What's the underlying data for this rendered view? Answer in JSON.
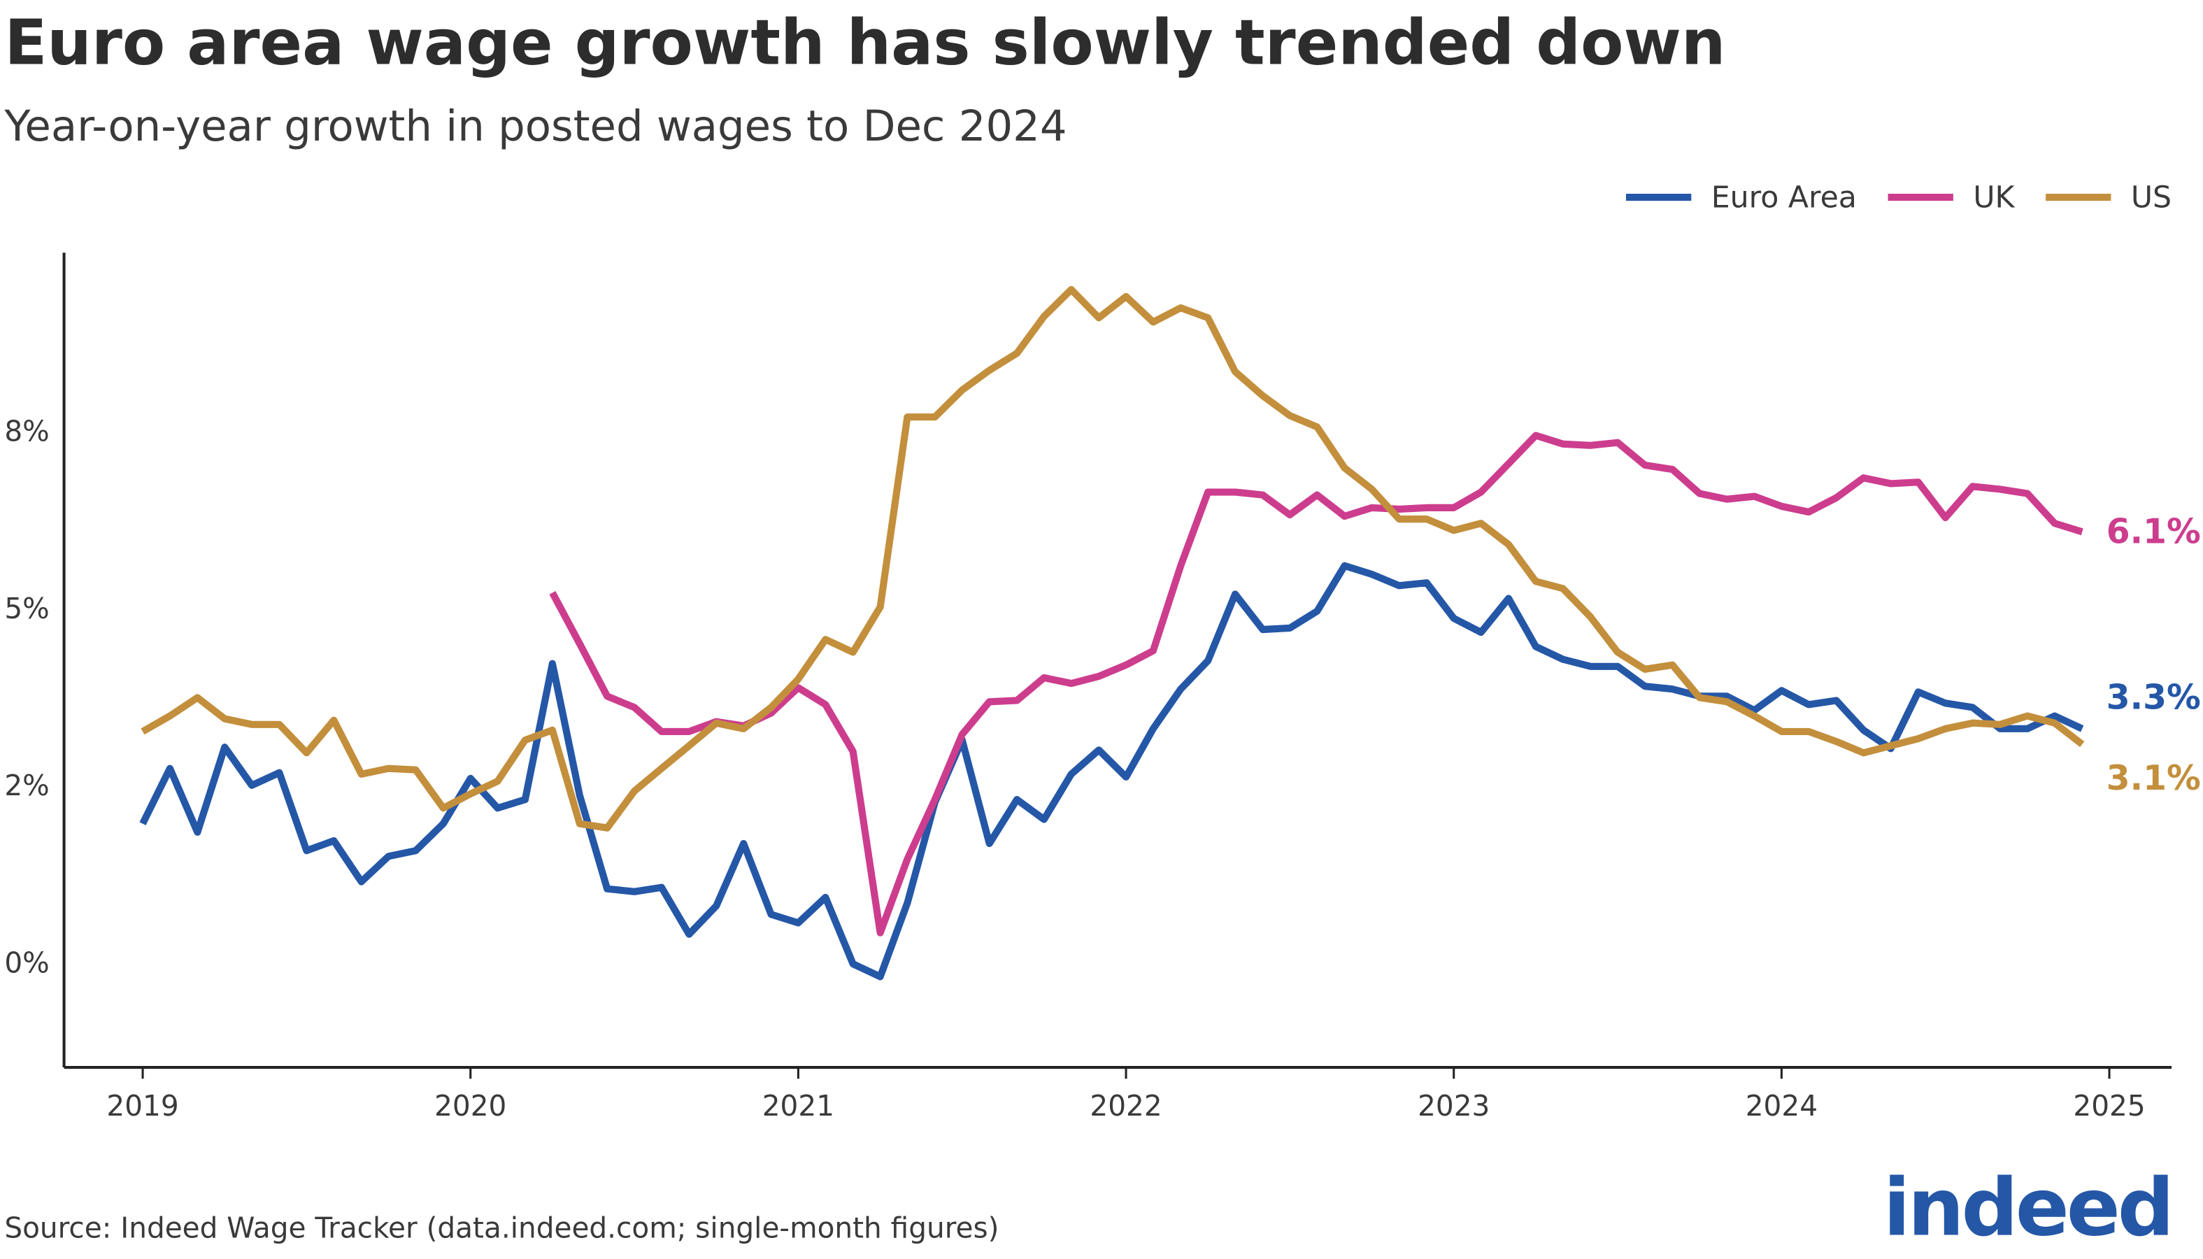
{
  "chart_data": {
    "type": "line",
    "title": "Euro area wage growth has slowly trended down",
    "subtitle": "Year-on-year growth in posted wages to Dec 2024",
    "source": "Source: Indeed Wage Tracker (data.indeed.com; single-month figures)",
    "logo": "indeed",
    "legend": "top-right",
    "xlim": [
      2018.76,
      2025.19
    ],
    "xticks": [
      2019,
      2020,
      2021,
      2022,
      2023,
      2024,
      2025
    ],
    "ylim": [
      -1.5,
      10
    ],
    "yticks": [
      0,
      {
        "value": 2.5,
        "label": "2%"
      },
      {
        "value": 5,
        "label": "5%"
      },
      {
        "value": 7.5,
        "label": "8%"
      }
    ],
    "ytick_zero_label": "0%",
    "x": [
      2019,
      2019.083,
      2019.167,
      2019.25,
      2019.333,
      2019.417,
      2019.5,
      2019.583,
      2019.667,
      2019.75,
      2019.833,
      2019.917,
      2020,
      2020.083,
      2020.167,
      2020.25,
      2020.333,
      2020.417,
      2020.5,
      2020.583,
      2020.667,
      2020.75,
      2020.833,
      2020.917,
      2021,
      2021.083,
      2021.167,
      2021.25,
      2021.333,
      2021.417,
      2021.5,
      2021.583,
      2021.667,
      2021.75,
      2021.833,
      2021.917,
      2022,
      2022.083,
      2022.167,
      2022.25,
      2022.333,
      2022.417,
      2022.5,
      2022.583,
      2022.667,
      2022.75,
      2022.833,
      2022.917,
      2023,
      2023.083,
      2023.167,
      2023.25,
      2023.333,
      2023.417,
      2023.5,
      2023.583,
      2023.667,
      2023.75,
      2023.833,
      2023.917,
      2024,
      2024.083,
      2024.167,
      2024.25,
      2024.333,
      2024.417,
      2024.5,
      2024.583,
      2024.667,
      2024.75,
      2024.833,
      2024.917
    ],
    "series": [
      {
        "name": "Euro Area",
        "color": "#2557a7",
        "end_label": "3.3%",
        "values": [
          1.94,
          2.72,
          1.82,
          3.02,
          2.48,
          2.66,
          1.56,
          1.7,
          1.12,
          1.48,
          1.56,
          1.94,
          2.58,
          2.16,
          2.28,
          4.2,
          2.34,
          1.02,
          0.98,
          1.04,
          0.38,
          0.78,
          1.66,
          0.66,
          0.54,
          0.9,
          -0.04,
          -0.22,
          0.82,
          2.24,
          3.12,
          1.66,
          2.28,
          2.0,
          2.64,
          2.98,
          2.6,
          3.28,
          3.84,
          4.24,
          5.18,
          4.68,
          4.7,
          4.94,
          5.58,
          5.46,
          5.3,
          5.34,
          4.84,
          4.64,
          5.12,
          4.44,
          4.26,
          4.16,
          4.16,
          3.88,
          3.84,
          3.74,
          3.74,
          3.54,
          3.82,
          3.62,
          3.68,
          3.26,
          3.0,
          3.8,
          3.64,
          3.58,
          3.28,
          3.28,
          3.46,
          3.28
        ]
      },
      {
        "name": "UK",
        "color": "#cd3d8e",
        "end_label": "6.1%",
        "values": [
          null,
          null,
          null,
          null,
          null,
          null,
          null,
          null,
          null,
          null,
          null,
          null,
          null,
          null,
          null,
          5.2,
          4.48,
          3.74,
          3.58,
          3.24,
          3.24,
          3.38,
          3.32,
          3.5,
          3.86,
          3.62,
          2.96,
          0.4,
          1.44,
          2.28,
          3.2,
          3.66,
          3.68,
          4.0,
          3.92,
          4.02,
          4.18,
          4.38,
          5.58,
          6.62,
          6.62,
          6.58,
          6.3,
          6.58,
          6.28,
          6.4,
          6.38,
          6.4,
          6.4,
          6.62,
          7.02,
          7.42,
          7.3,
          7.28,
          7.32,
          7.0,
          6.94,
          6.6,
          6.52,
          6.56,
          6.42,
          6.34,
          6.54,
          6.82,
          6.74,
          6.76,
          6.26,
          6.7,
          6.66,
          6.6,
          6.18,
          6.06
        ]
      },
      {
        "name": "US",
        "color": "#c38f3c",
        "end_label": "3.1%",
        "values": [
          3.24,
          3.46,
          3.72,
          3.42,
          3.34,
          3.34,
          2.94,
          3.4,
          2.64,
          2.72,
          2.7,
          2.16,
          2.36,
          2.54,
          3.12,
          3.26,
          1.94,
          1.88,
          2.4,
          2.72,
          3.04,
          3.36,
          3.28,
          3.58,
          3.98,
          4.54,
          4.36,
          5.0,
          7.68,
          7.68,
          8.06,
          8.34,
          8.58,
          9.1,
          9.48,
          9.08,
          9.38,
          9.02,
          9.22,
          9.08,
          8.32,
          7.98,
          7.7,
          7.54,
          6.96,
          6.66,
          6.24,
          6.24,
          6.08,
          6.18,
          5.88,
          5.36,
          5.26,
          4.86,
          4.36,
          4.12,
          4.18,
          3.72,
          3.66,
          3.46,
          3.24,
          3.24,
          3.1,
          2.94,
          3.04,
          3.14,
          3.28,
          3.36,
          3.34,
          3.46,
          3.36,
          3.06
        ]
      }
    ]
  }
}
